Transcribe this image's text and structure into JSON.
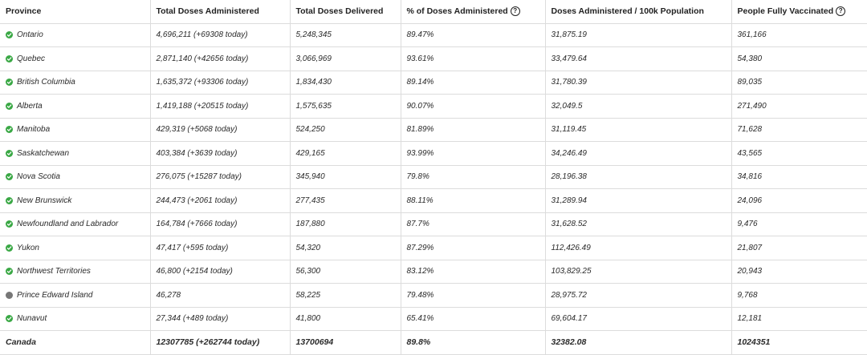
{
  "colors": {
    "fully": "#3aa845",
    "partial": "#777777"
  },
  "headers": {
    "province": "Province",
    "total_administered": "Total Doses Administered",
    "total_delivered": "Total Doses Delivered",
    "pct_administered": "% of Doses Administered",
    "per_100k": "Doses Administered / 100k Population",
    "fully_vaccinated": "People Fully Vaccinated",
    "help_icon": "?"
  },
  "rows": [
    {
      "province": "Ontario",
      "status": "check",
      "administered": "4,696,211 (+69308 today)",
      "delivered": "5,248,345",
      "pct": "89.47%",
      "per100k": "31,875.19",
      "fully": "361,166"
    },
    {
      "province": "Quebec",
      "status": "check",
      "administered": "2,871,140 (+42656 today)",
      "delivered": "3,066,969",
      "pct": "93.61%",
      "per100k": "33,479.64",
      "fully": "54,380"
    },
    {
      "province": "British Columbia",
      "status": "check",
      "administered": "1,635,372 (+93306 today)",
      "delivered": "1,834,430",
      "pct": "89.14%",
      "per100k": "31,780.39",
      "fully": "89,035"
    },
    {
      "province": "Alberta",
      "status": "check",
      "administered": "1,419,188 (+20515 today)",
      "delivered": "1,575,635",
      "pct": "90.07%",
      "per100k": "32,049.5",
      "fully": "271,490"
    },
    {
      "province": "Manitoba",
      "status": "check",
      "administered": "429,319 (+5068 today)",
      "delivered": "524,250",
      "pct": "81.89%",
      "per100k": "31,119.45",
      "fully": "71,628"
    },
    {
      "province": "Saskatchewan",
      "status": "check",
      "administered": "403,384 (+3639 today)",
      "delivered": "429,165",
      "pct": "93.99%",
      "per100k": "34,246.49",
      "fully": "43,565"
    },
    {
      "province": "Nova Scotia",
      "status": "check",
      "administered": "276,075 (+15287 today)",
      "delivered": "345,940",
      "pct": "79.8%",
      "per100k": "28,196.38",
      "fully": "34,816"
    },
    {
      "province": "New Brunswick",
      "status": "check",
      "administered": "244,473 (+2061 today)",
      "delivered": "277,435",
      "pct": "88.11%",
      "per100k": "31,289.94",
      "fully": "24,096"
    },
    {
      "province": "Newfoundland and Labrador",
      "status": "check",
      "administered": "164,784 (+7666 today)",
      "delivered": "187,880",
      "pct": "87.7%",
      "per100k": "31,628.52",
      "fully": "9,476"
    },
    {
      "province": "Yukon",
      "status": "check",
      "administered": "47,417 (+595 today)",
      "delivered": "54,320",
      "pct": "87.29%",
      "per100k": "112,426.49",
      "fully": "21,807"
    },
    {
      "province": "Northwest Territories",
      "status": "check",
      "administered": "46,800 (+2154 today)",
      "delivered": "56,300",
      "pct": "83.12%",
      "per100k": "103,829.25",
      "fully": "20,943"
    },
    {
      "province": "Prince Edward Island",
      "status": "dot",
      "administered": "46,278",
      "delivered": "58,225",
      "pct": "79.48%",
      "per100k": "28,975.72",
      "fully": "9,768"
    },
    {
      "province": "Nunavut",
      "status": "check",
      "administered": "27,344 (+489 today)",
      "delivered": "41,800",
      "pct": "65.41%",
      "per100k": "69,604.17",
      "fully": "12,181"
    }
  ],
  "total": {
    "province": "Canada",
    "administered": "12307785 (+262744 today)",
    "delivered": "13700694",
    "pct": "89.8%",
    "per100k": "32382.08",
    "fully": "1024351"
  }
}
